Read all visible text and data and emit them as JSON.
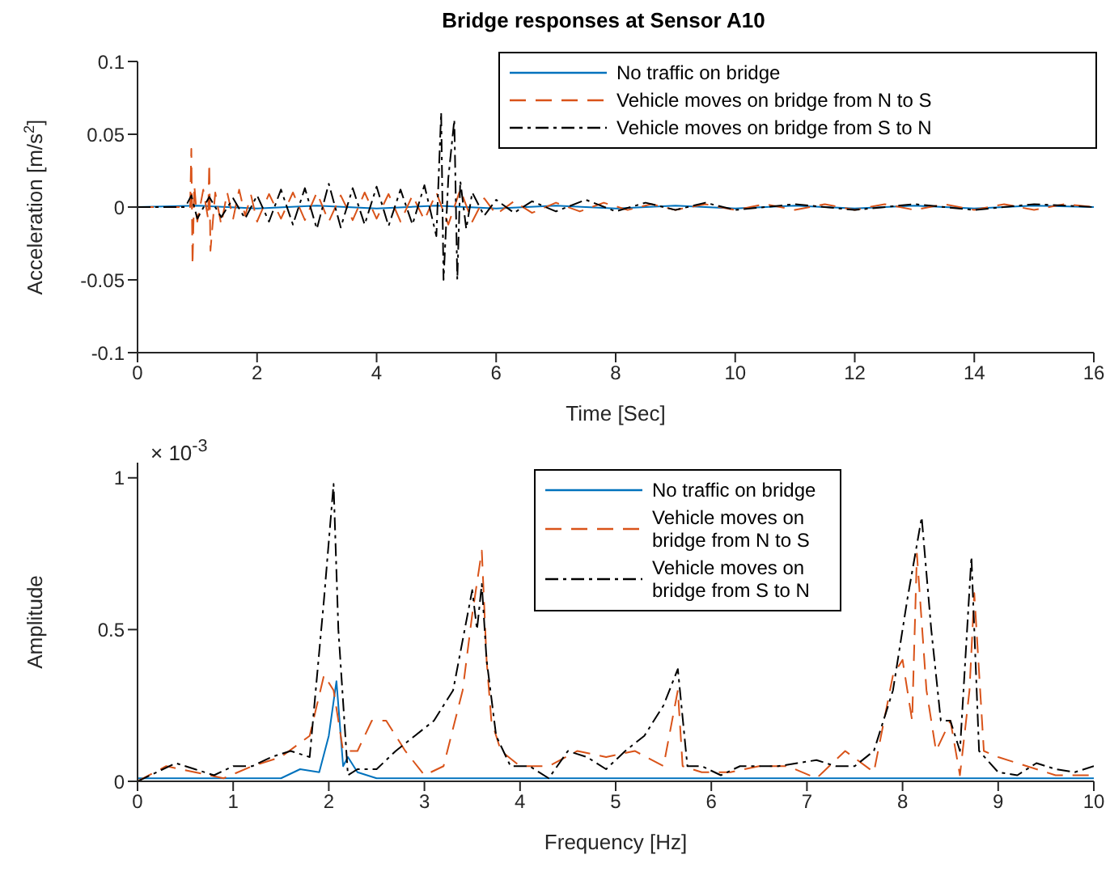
{
  "chart_data": [
    {
      "type": "line",
      "title": "Bridge responses at Sensor A10",
      "xlabel": "Time [Sec]",
      "ylabel": "Acceleration [m/s$^{2}$]",
      "xlim": [
        0,
        16
      ],
      "xticks": [
        0,
        2,
        4,
        6,
        8,
        10,
        12,
        14,
        16
      ],
      "ylim": [
        -0.1,
        0.1
      ],
      "yticks": [
        -0.1,
        -0.05,
        0,
        0.05,
        0.1
      ],
      "grid": false,
      "legend": "top right",
      "marker": "none",
      "series": [
        {
          "name": "No traffic on bridge",
          "color": "#0072bd",
          "line_style": "solid",
          "x": [
            0,
            1,
            2,
            3,
            4,
            5,
            6,
            7,
            8,
            9,
            10,
            11,
            12,
            13,
            14,
            15,
            16
          ],
          "values": [
            0,
            0.001,
            -0.001,
            0.001,
            -0.001,
            0.001,
            -0.001,
            0.001,
            -0.001,
            0.001,
            -0.001,
            0.001,
            -0.001,
            0.001,
            -0.001,
            0.001,
            0
          ]
        },
        {
          "name": "Vehicle moves on bridge from N to S",
          "color": "#d95319",
          "line_style": "dashed",
          "x": [
            0,
            0.5,
            0.88,
            0.9,
            0.92,
            0.95,
            1.0,
            1.1,
            1.18,
            1.2,
            1.22,
            1.3,
            1.4,
            1.5,
            1.6,
            1.7,
            1.8,
            1.9,
            2.0,
            2.2,
            2.4,
            2.6,
            2.8,
            3.0,
            3.2,
            3.4,
            3.6,
            3.8,
            4.0,
            4.2,
            4.4,
            4.6,
            4.8,
            5.0,
            5.2,
            5.4,
            5.6,
            5.8,
            6.0,
            6.3,
            6.6,
            7.0,
            7.4,
            7.8,
            8.2,
            8.6,
            9.0,
            9.5,
            10,
            10.5,
            11,
            11.5,
            12,
            12.5,
            13,
            13.5,
            14,
            14.5,
            15,
            15.5,
            16
          ],
          "values": [
            0,
            0,
            0,
            0.04,
            -0.04,
            0.015,
            -0.01,
            0.012,
            -0.008,
            0.03,
            -0.03,
            0.01,
            -0.012,
            0.01,
            -0.008,
            0.012,
            -0.006,
            0.008,
            -0.01,
            0.009,
            -0.008,
            0.01,
            -0.009,
            0.01,
            -0.01,
            0.008,
            -0.009,
            0.01,
            -0.008,
            0.009,
            -0.01,
            0.008,
            -0.009,
            0.01,
            -0.012,
            0.012,
            -0.01,
            0.006,
            -0.005,
            0.004,
            -0.004,
            0.003,
            -0.003,
            0.003,
            -0.002,
            0.002,
            -0.002,
            0.002,
            -0.002,
            0.002,
            -0.002,
            0.002,
            -0.002,
            0.002,
            -0.002,
            0.002,
            -0.002,
            0.002,
            -0.002,
            0.002,
            0
          ]
        },
        {
          "name": "Vehicle moves on bridge from S to N",
          "color": "#000000",
          "line_style": "dashdot",
          "x": [
            0,
            0.8,
            0.9,
            1.0,
            1.2,
            1.4,
            1.6,
            1.8,
            2.0,
            2.2,
            2.4,
            2.6,
            2.8,
            3.0,
            3.2,
            3.4,
            3.6,
            3.8,
            4.0,
            4.2,
            4.4,
            4.6,
            4.8,
            5.0,
            5.08,
            5.12,
            5.2,
            5.3,
            5.35,
            5.4,
            5.5,
            5.6,
            5.8,
            6.0,
            6.3,
            6.6,
            7.0,
            7.5,
            8.0,
            8.5,
            9.0,
            9.5,
            10,
            11,
            12,
            13,
            14,
            15,
            16
          ],
          "values": [
            0,
            0,
            0.008,
            -0.008,
            0.007,
            -0.007,
            0.006,
            -0.008,
            0.008,
            -0.01,
            0.012,
            -0.012,
            0.013,
            -0.015,
            0.016,
            -0.014,
            0.013,
            -0.012,
            0.014,
            -0.013,
            0.012,
            -0.012,
            0.015,
            -0.02,
            0.065,
            -0.05,
            0.02,
            0.06,
            -0.05,
            0.018,
            -0.015,
            0.01,
            -0.006,
            0.005,
            -0.004,
            0.004,
            -0.003,
            0.005,
            -0.003,
            0.003,
            -0.002,
            0.003,
            -0.002,
            0.002,
            -0.002,
            0.002,
            -0.002,
            0.002,
            0
          ]
        }
      ]
    },
    {
      "type": "line",
      "xlabel": "Frequency [Hz]",
      "ylabel": "Amplitude",
      "annotations": [
        "× 10$^{-3}$"
      ],
      "xlim": [
        0,
        10
      ],
      "xticks": [
        0,
        1,
        2,
        3,
        4,
        5,
        6,
        7,
        8,
        9,
        10
      ],
      "ylim": [
        0,
        1.05
      ],
      "yticks": [
        0,
        0.5,
        1
      ],
      "grid": false,
      "legend": "top right",
      "marker": "none",
      "series": [
        {
          "name": "No traffic on bridge",
          "color": "#0072bd",
          "line_style": "solid",
          "x": [
            0,
            0.5,
            1,
            1.5,
            1.7,
            1.9,
            2.0,
            2.08,
            2.15,
            2.2,
            2.3,
            2.5,
            3,
            4,
            5,
            6,
            7,
            8,
            9,
            10
          ],
          "values": [
            0.01,
            0.01,
            0.01,
            0.01,
            0.04,
            0.03,
            0.15,
            0.33,
            0.05,
            0.08,
            0.03,
            0.01,
            0.01,
            0.01,
            0.01,
            0.01,
            0.01,
            0.01,
            0.01,
            0.01
          ]
        },
        {
          "name": "Vehicle moves on bridge from N to S",
          "color": "#d95319",
          "line_style": "dashed",
          "x": [
            0,
            0.3,
            0.6,
            0.9,
            1.2,
            1.5,
            1.8,
            1.95,
            2.05,
            2.15,
            2.3,
            2.45,
            2.6,
            2.8,
            3.0,
            3.2,
            3.4,
            3.5,
            3.6,
            3.65,
            3.7,
            3.8,
            4.0,
            4.3,
            4.6,
            4.9,
            5.2,
            5.5,
            5.65,
            5.7,
            5.9,
            6.2,
            6.5,
            6.8,
            7.1,
            7.4,
            7.7,
            7.9,
            8.0,
            8.1,
            8.15,
            8.25,
            8.35,
            8.5,
            8.6,
            8.7,
            8.75,
            8.85,
            9.0,
            9.3,
            9.6,
            10
          ],
          "values": [
            0,
            0.05,
            0.03,
            0.01,
            0.05,
            0.08,
            0.15,
            0.35,
            0.3,
            0.1,
            0.1,
            0.2,
            0.2,
            0.1,
            0.02,
            0.05,
            0.3,
            0.55,
            0.76,
            0.4,
            0.2,
            0.1,
            0.05,
            0.05,
            0.1,
            0.08,
            0.1,
            0.05,
            0.3,
            0.05,
            0.03,
            0.03,
            0.05,
            0.05,
            0.01,
            0.1,
            0.03,
            0.35,
            0.4,
            0.2,
            0.75,
            0.3,
            0.1,
            0.2,
            0.02,
            0.3,
            0.62,
            0.1,
            0.08,
            0.05,
            0.02,
            0.02
          ]
        },
        {
          "name": "Vehicle moves on bridge from S to N",
          "color": "#000000",
          "line_style": "dashdot",
          "x": [
            0,
            0.2,
            0.4,
            0.6,
            0.8,
            1.0,
            1.2,
            1.4,
            1.6,
            1.8,
            1.95,
            2.05,
            2.1,
            2.2,
            2.3,
            2.5,
            2.7,
            2.9,
            3.1,
            3.3,
            3.5,
            3.55,
            3.6,
            3.65,
            3.75,
            3.9,
            4.1,
            4.3,
            4.5,
            4.7,
            4.9,
            5.1,
            5.3,
            5.5,
            5.65,
            5.75,
            5.9,
            6.1,
            6.3,
            6.5,
            6.7,
            6.9,
            7.1,
            7.3,
            7.5,
            7.7,
            7.9,
            8.05,
            8.2,
            8.3,
            8.4,
            8.5,
            8.6,
            8.72,
            8.8,
            9.0,
            9.2,
            9.4,
            9.6,
            9.8,
            10
          ],
          "values": [
            0,
            0.03,
            0.06,
            0.04,
            0.02,
            0.05,
            0.05,
            0.08,
            0.1,
            0.08,
            0.6,
            0.98,
            0.5,
            0.02,
            0.04,
            0.04,
            0.1,
            0.15,
            0.2,
            0.3,
            0.63,
            0.5,
            0.65,
            0.4,
            0.15,
            0.05,
            0.05,
            0.01,
            0.1,
            0.08,
            0.04,
            0.1,
            0.15,
            0.25,
            0.37,
            0.05,
            0.05,
            0.02,
            0.05,
            0.05,
            0.05,
            0.06,
            0.07,
            0.05,
            0.05,
            0.1,
            0.3,
            0.6,
            0.87,
            0.5,
            0.2,
            0.2,
            0.1,
            0.74,
            0.1,
            0.03,
            0.02,
            0.06,
            0.04,
            0.03,
            0.05
          ]
        }
      ]
    }
  ]
}
